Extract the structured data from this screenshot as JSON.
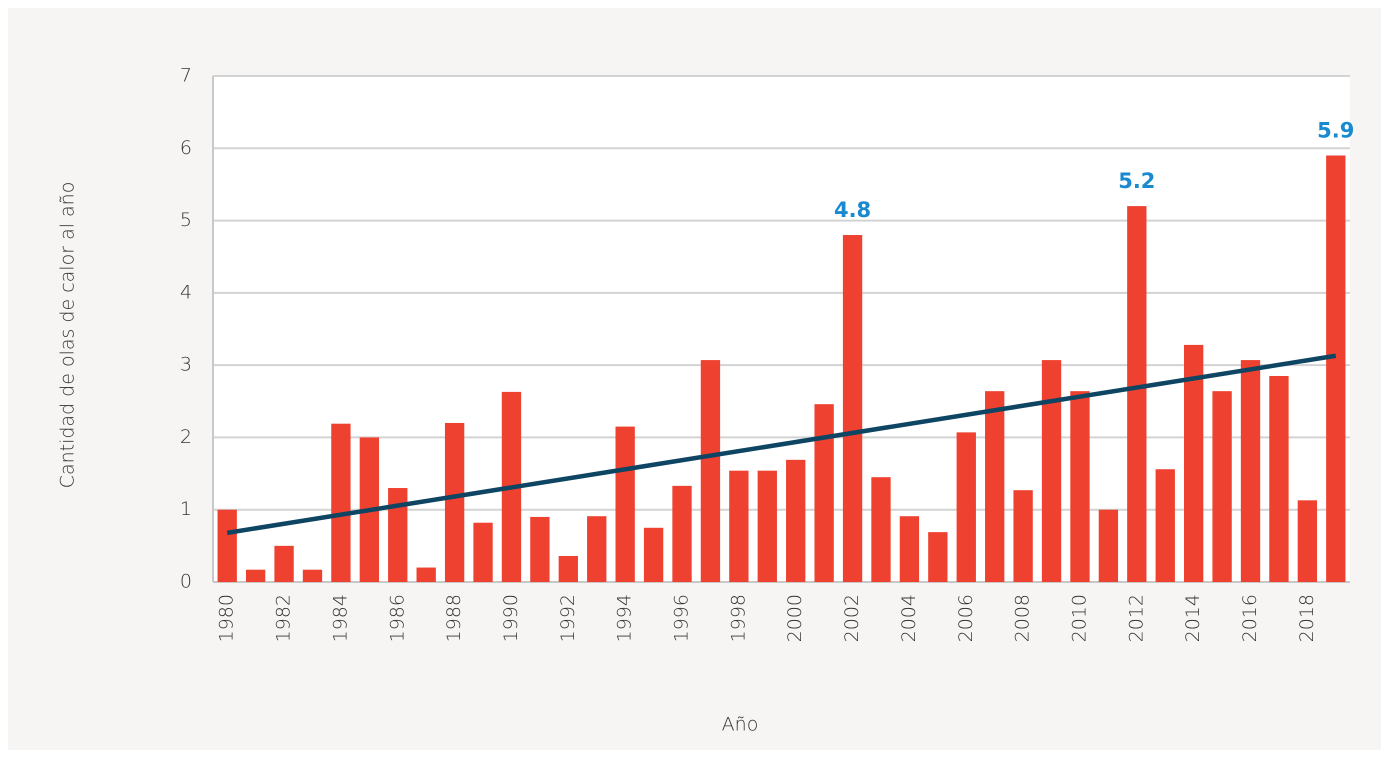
{
  "chart_data": {
    "type": "bar",
    "y_label": "Cantidad de olas de calor al año",
    "x_label": "Año",
    "categories": [
      "1980",
      null,
      "1982",
      null,
      "1984",
      null,
      "1986",
      null,
      "1988",
      null,
      "1990",
      null,
      "1992",
      null,
      "1994",
      null,
      "1996",
      null,
      "1998",
      null,
      "2000",
      null,
      "2002",
      null,
      "2004",
      null,
      "2006",
      null,
      "2008",
      null,
      "2010",
      null,
      "2012",
      null,
      "2014",
      null,
      "2016",
      null,
      "2018",
      null
    ],
    "values": [
      1.0,
      0.17,
      0.5,
      0.17,
      2.19,
      2.0,
      1.3,
      0.2,
      2.2,
      0.82,
      2.63,
      0.9,
      0.36,
      0.91,
      2.15,
      0.75,
      1.33,
      3.07,
      1.54,
      1.54,
      1.69,
      2.46,
      4.8,
      1.45,
      0.91,
      0.69,
      2.07,
      2.64,
      1.27,
      3.07,
      2.64,
      1.0,
      5.2,
      1.56,
      3.28,
      2.64,
      3.07,
      2.85,
      1.13,
      5.9
    ],
    "value_labels": [
      null,
      null,
      null,
      null,
      null,
      null,
      null,
      null,
      null,
      null,
      null,
      null,
      null,
      null,
      null,
      null,
      null,
      null,
      null,
      null,
      null,
      null,
      "4.8",
      null,
      null,
      null,
      null,
      null,
      null,
      null,
      null,
      null,
      "5.2",
      null,
      null,
      null,
      null,
      null,
      null,
      "5.9"
    ],
    "color": "#ee4130",
    "value_label_color": "#1a8ad0",
    "trendline": {
      "color": "#0d4563",
      "start": 0.68,
      "end": 3.13
    },
    "ylim": [
      0,
      7
    ],
    "yticks": [
      0,
      1,
      2,
      3,
      4,
      5,
      6,
      7
    ],
    "grid": true
  }
}
